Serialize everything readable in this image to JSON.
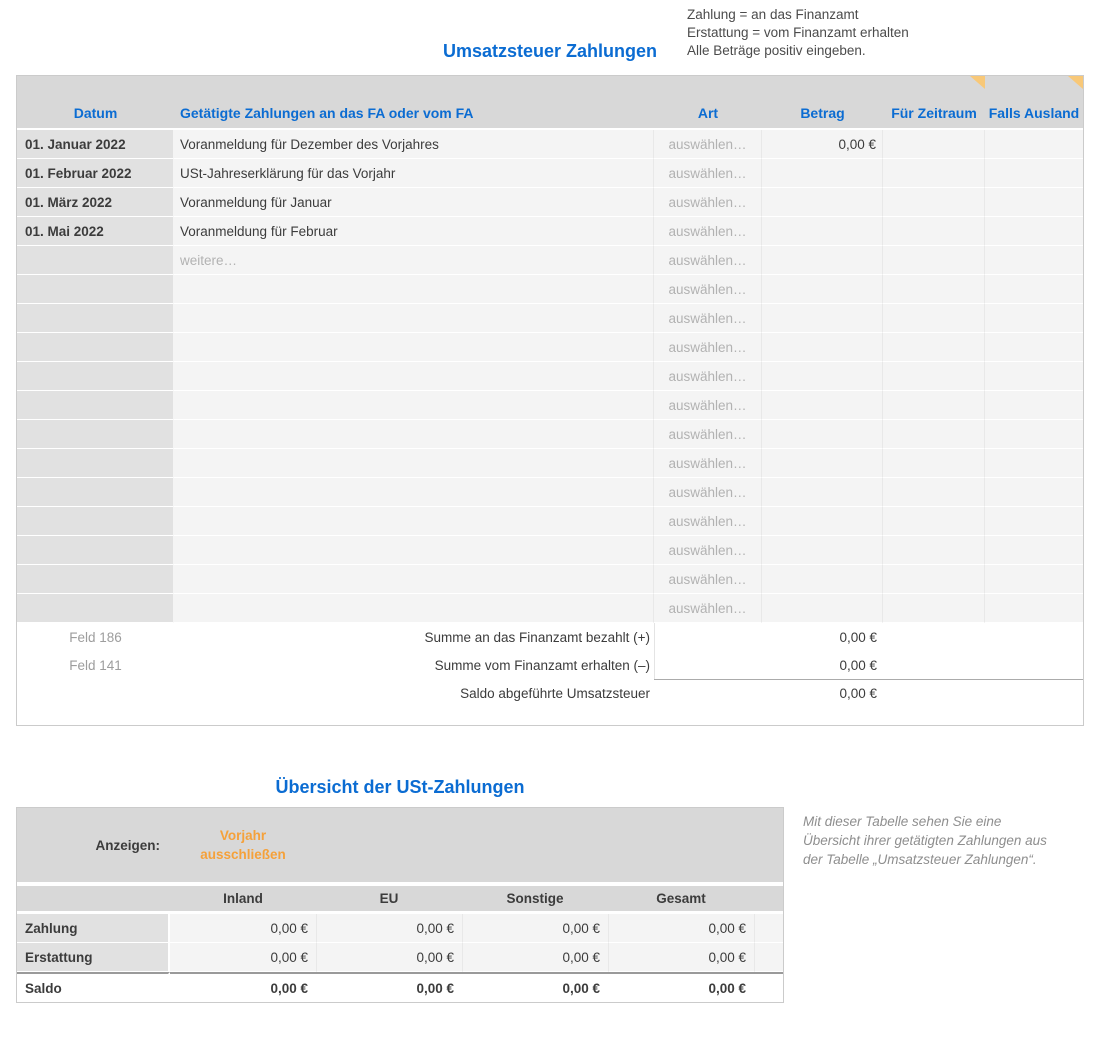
{
  "colors": {
    "accent_blue": "#0b6cd2",
    "accent_orange": "#f5a13a",
    "comment_indicator": "#f8c878",
    "header_bg": "#d8d8d8",
    "label_cell_bg": "#e1e1e1",
    "value_cell_bg": "#f4f4f4",
    "text_dark": "#3c3c3c",
    "placeholder_gray": "#b2b2b2",
    "field_gray": "#9d9d9d",
    "note_gray": "#8e8e8e"
  },
  "payments_table": {
    "title": "Umsatzsteuer Zahlungen",
    "note_lines": [
      "Zahlung = an das Finanzamt",
      "Erstattung = vom Finanzamt erhalten",
      "Alle Beträge positiv eingeben."
    ],
    "columns": {
      "datum": "Datum",
      "description": "Getätigte Zahlungen an das FA oder vom FA",
      "art": "Art",
      "betrag": "Betrag",
      "zeitraum": "Für Zeitraum",
      "ausland": "Falls Ausland"
    },
    "rows": [
      {
        "datum": "01. Januar 2022",
        "description": "Voranmeldung für Dezember des Vorjahres",
        "art": "auswählen…",
        "betrag": "0,00 €",
        "muted": false
      },
      {
        "datum": "01. Februar 2022",
        "description": "USt-Jahreserklärung für das Vorjahr",
        "art": "auswählen…",
        "betrag": "",
        "muted": false
      },
      {
        "datum": "01. März 2022",
        "description": "Voranmeldung für Januar",
        "art": "auswählen…",
        "betrag": "",
        "muted": false
      },
      {
        "datum": "01. Mai 2022",
        "description": "Voranmeldung für Februar",
        "art": "auswählen…",
        "betrag": "",
        "muted": false
      },
      {
        "datum": "",
        "description": "weitere…",
        "art": "auswählen…",
        "betrag": "",
        "muted": true
      },
      {
        "datum": "",
        "description": "",
        "art": "auswählen…",
        "betrag": "",
        "muted": true
      },
      {
        "datum": "",
        "description": "",
        "art": "auswählen…",
        "betrag": "",
        "muted": true
      },
      {
        "datum": "",
        "description": "",
        "art": "auswählen…",
        "betrag": "",
        "muted": true
      },
      {
        "datum": "",
        "description": "",
        "art": "auswählen…",
        "betrag": "",
        "muted": true
      },
      {
        "datum": "",
        "description": "",
        "art": "auswählen…",
        "betrag": "",
        "muted": true
      },
      {
        "datum": "",
        "description": "",
        "art": "auswählen…",
        "betrag": "",
        "muted": true
      },
      {
        "datum": "",
        "description": "",
        "art": "auswählen…",
        "betrag": "",
        "muted": true
      },
      {
        "datum": "",
        "description": "",
        "art": "auswählen…",
        "betrag": "",
        "muted": true
      },
      {
        "datum": "",
        "description": "",
        "art": "auswählen…",
        "betrag": "",
        "muted": true
      },
      {
        "datum": "",
        "description": "",
        "art": "auswählen…",
        "betrag": "",
        "muted": true
      },
      {
        "datum": "",
        "description": "",
        "art": "auswählen…",
        "betrag": "",
        "muted": true
      },
      {
        "datum": "",
        "description": "",
        "art": "auswählen…",
        "betrag": "",
        "muted": true
      }
    ],
    "summary": [
      {
        "field": "Feld 186",
        "label": "Summe an das Finanzamt bezahlt (+)",
        "value": "0,00 €"
      },
      {
        "field": "Feld 141",
        "label": "Summe vom Finanzamt erhalten (–)",
        "value": "0,00 €"
      },
      {
        "field": "",
        "label": "Saldo abgeführte Umsatzsteuer",
        "value": "0,00 €"
      }
    ]
  },
  "overview_table": {
    "title": "Übersicht der USt-Zahlungen",
    "anzeigen_label": "Anzeigen:",
    "filter_label": "Vorjahr ausschließen",
    "columns": [
      "Inland",
      "EU",
      "Sonstige",
      "Gesamt"
    ],
    "rows": [
      {
        "label": "Zahlung",
        "values": [
          "0,00 €",
          "0,00 €",
          "0,00 €",
          "0,00 €"
        ]
      },
      {
        "label": "Erstattung",
        "values": [
          "0,00 €",
          "0,00 €",
          "0,00 €",
          "0,00 €"
        ]
      },
      {
        "label": "Saldo",
        "values": [
          "0,00 €",
          "0,00 €",
          "0,00 €",
          "0,00 €"
        ]
      }
    ],
    "note": "Mit dieser Tabelle sehen Sie eine Übersicht ihrer getätigten Zahlungen aus der Tabelle „Umsatzsteuer Zahlungen“."
  }
}
